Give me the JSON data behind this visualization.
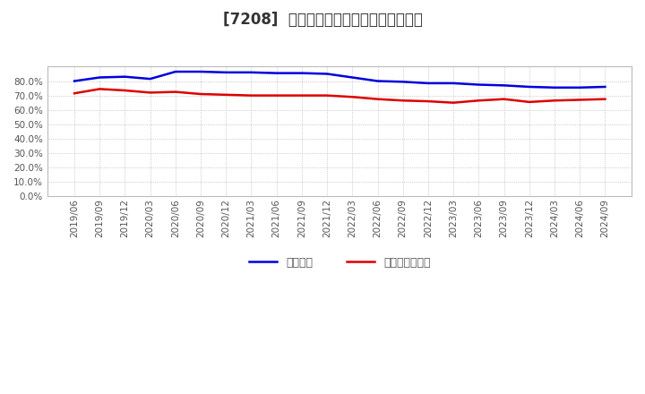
{
  "title": "[7208]  固定比率、固定長期適合率の推移",
  "blue_label": "固定比率",
  "red_label": "固定長期適合率",
  "x_labels": [
    "2019/06",
    "2019/09",
    "2019/12",
    "2020/03",
    "2020/06",
    "2020/09",
    "2020/12",
    "2021/03",
    "2021/06",
    "2021/09",
    "2021/12",
    "2022/03",
    "2022/06",
    "2022/09",
    "2022/12",
    "2023/03",
    "2023/06",
    "2023/09",
    "2023/12",
    "2024/03",
    "2024/06",
    "2024/09"
  ],
  "blue_values": [
    80.0,
    82.5,
    83.0,
    81.5,
    86.5,
    86.5,
    86.0,
    86.0,
    85.5,
    85.5,
    85.0,
    82.5,
    80.0,
    79.5,
    78.5,
    78.5,
    77.5,
    77.0,
    76.0,
    75.5,
    75.5,
    76.0
  ],
  "red_values": [
    71.5,
    74.5,
    73.5,
    72.0,
    72.5,
    71.0,
    70.5,
    70.0,
    70.0,
    70.0,
    70.0,
    69.0,
    67.5,
    66.5,
    66.0,
    65.0,
    66.5,
    67.5,
    65.5,
    66.5,
    67.0,
    67.5
  ],
  "ylim": [
    0,
    90
  ],
  "yticks": [
    0.0,
    10.0,
    20.0,
    30.0,
    40.0,
    50.0,
    60.0,
    70.0,
    80.0
  ],
  "blue_color": "#0000dd",
  "red_color": "#dd0000",
  "bg_color": "#ffffff",
  "grid_color": "#aaaaaa",
  "title_fontsize": 12,
  "tick_fontsize": 7.5,
  "legend_fontsize": 9
}
